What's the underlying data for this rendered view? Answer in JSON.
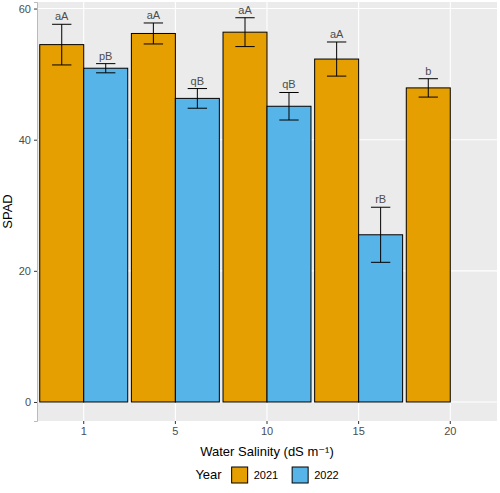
{
  "chart_data": {
    "type": "bar",
    "x_label": "Water Salinity (dS m⁻¹)",
    "y_label": "SPAD",
    "categories": [
      "1",
      "5",
      "10",
      "15",
      "20"
    ],
    "series": [
      {
        "name": "2021",
        "color": "#E69F00",
        "values": [
          54.5,
          56.2,
          56.4,
          52.3,
          47.9
        ],
        "errors": [
          3.1,
          1.6,
          2.2,
          2.6,
          1.4
        ],
        "letters": [
          "aA",
          "aA",
          "aA",
          "aA",
          "b"
        ]
      },
      {
        "name": "2022",
        "color": "#56B4E9",
        "values": [
          50.9,
          46.3,
          45.1,
          25.5,
          0
        ],
        "errors": [
          0.7,
          1.5,
          2.1,
          4.2,
          null
        ],
        "letters": [
          "pB",
          "qB",
          "qB",
          "rB",
          null
        ]
      }
    ],
    "ylim": [
      -2.9,
      61
    ],
    "yticks": [
      0,
      20,
      40,
      60
    ],
    "grid": true,
    "legend": "bottom",
    "legend_title": "Year"
  }
}
